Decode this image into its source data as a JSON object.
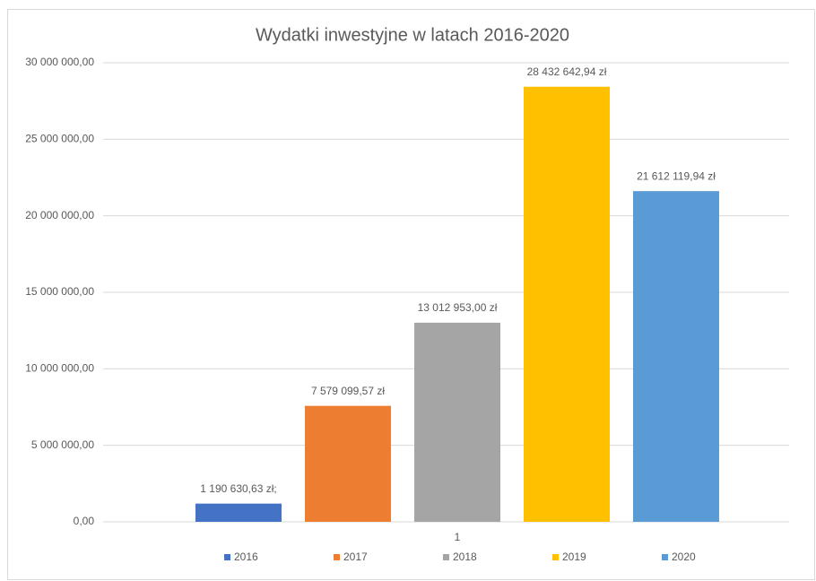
{
  "chart_data": {
    "type": "bar",
    "title": "Wydatki inwestyjne w latach 2016-2020",
    "categories": [
      "1"
    ],
    "series": [
      {
        "name": "2016",
        "color": "#4472c4",
        "values": [
          1190630.63
        ],
        "value_labels": [
          "1 190 630,63 zł;"
        ]
      },
      {
        "name": "2017",
        "color": "#ed7d31",
        "values": [
          7579099.57
        ],
        "value_labels": [
          "7 579 099,57 zł"
        ]
      },
      {
        "name": "2018",
        "color": "#a5a5a5",
        "values": [
          13012953.0
        ],
        "value_labels": [
          "13 012 953,00 zł"
        ]
      },
      {
        "name": "2019",
        "color": "#ffc000",
        "values": [
          28432642.94
        ],
        "value_labels": [
          "28 432 642,94 zł"
        ]
      },
      {
        "name": "2020",
        "color": "#5b9bd5",
        "values": [
          21612119.94
        ],
        "value_labels": [
          "21 612 119,94 zł"
        ]
      }
    ],
    "ylim": [
      0,
      30000000
    ],
    "yticks": [
      {
        "value": 0,
        "label": "0,00"
      },
      {
        "value": 5000000,
        "label": "5 000 000,00"
      },
      {
        "value": 10000000,
        "label": "10 000 000,00"
      },
      {
        "value": 15000000,
        "label": "15 000 000,00"
      },
      {
        "value": 20000000,
        "label": "20 000 000,00"
      },
      {
        "value": 25000000,
        "label": "25 000 000,00"
      },
      {
        "value": 30000000,
        "label": "30 000 000,00"
      }
    ],
    "grid": true,
    "legend": "bottom"
  }
}
